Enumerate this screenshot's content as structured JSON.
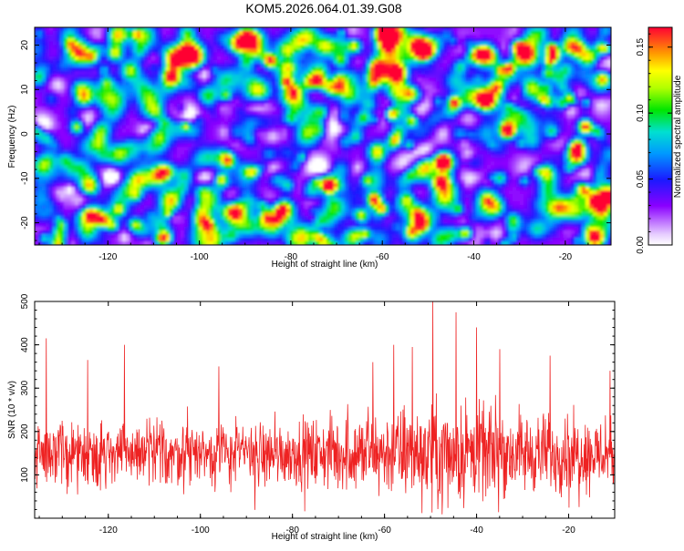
{
  "title": "KOM5.2026.064.01.39.G08",
  "chart_data": [
    {
      "type": "heatmap",
      "xlabel": "Height of straight line (km)",
      "ylabel": "Frequency (Hz)",
      "xlim": [
        -136,
        -10
      ],
      "ylim": [
        -25,
        24
      ],
      "xticks": [
        -120,
        -100,
        -80,
        -60,
        -40,
        -20
      ],
      "yticks": [
        -20,
        -10,
        0,
        10,
        20
      ],
      "colorbar": {
        "label": "Normalized spectral amplitude",
        "range": [
          0,
          0.165
        ],
        "ticks": [
          "0.00",
          "0.05",
          "0.10",
          "0.15"
        ]
      },
      "hotspots": [
        {
          "x": -57,
          "y": 14,
          "value": 0.16
        },
        {
          "x": -85,
          "y": 17,
          "value": 0.14
        },
        {
          "x": -47,
          "y": -6,
          "value": 0.15
        },
        {
          "x": -33,
          "y": 1,
          "value": 0.15
        },
        {
          "x": -108,
          "y": -23,
          "value": 0.13
        },
        {
          "x": -16,
          "y": 2,
          "value": 0.14
        },
        {
          "x": -42,
          "y": -22,
          "value": 0.13
        },
        {
          "x": -127,
          "y": 2,
          "value": 0.11
        },
        {
          "x": -65,
          "y": -18,
          "value": 0.1
        },
        {
          "x": -23,
          "y": 18,
          "value": 0.12
        }
      ],
      "background_value": 0.03
    },
    {
      "type": "line",
      "xlabel": "Height of straight line (km)",
      "ylabel": "SNR (10 * v/v)",
      "xlim": [
        -136,
        -10
      ],
      "ylim": [
        0,
        500
      ],
      "xticks": [
        -120,
        -100,
        -80,
        -60,
        -40,
        -20
      ],
      "yticks": [
        100,
        200,
        300,
        400,
        500
      ],
      "series_color": "#ee2222",
      "n_points": 1500,
      "baseline": 150,
      "noise_profile": [
        {
          "x": -136,
          "amp": 85
        },
        {
          "x": -80,
          "amp": 85
        },
        {
          "x": -62,
          "amp": 110
        },
        {
          "x": -48,
          "amp": 140
        },
        {
          "x": -35,
          "amp": 115
        },
        {
          "x": -10,
          "amp": 90
        }
      ],
      "peaks": [
        {
          "x": -133.5,
          "y": 415
        },
        {
          "x": -124.5,
          "y": 365
        },
        {
          "x": -116.5,
          "y": 400
        },
        {
          "x": -96,
          "y": 350
        },
        {
          "x": -62.5,
          "y": 360
        },
        {
          "x": -58,
          "y": 400
        },
        {
          "x": -54,
          "y": 395
        },
        {
          "x": -49.5,
          "y": 500
        },
        {
          "x": -44.5,
          "y": 475
        },
        {
          "x": -40,
          "y": 440
        },
        {
          "x": -35,
          "y": 390
        },
        {
          "x": -24,
          "y": 375
        },
        {
          "x": -11,
          "y": 340
        }
      ]
    }
  ]
}
